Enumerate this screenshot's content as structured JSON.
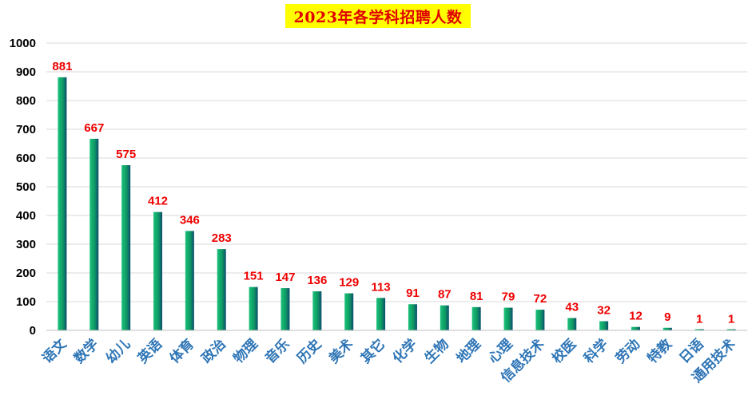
{
  "chart_data": {
    "type": "bar",
    "title": "2023年各学科招聘人数",
    "categories": [
      "语文",
      "数学",
      "幼儿",
      "英语",
      "体育",
      "政治",
      "物理",
      "音乐",
      "历史",
      "美术",
      "其它",
      "化学",
      "生物",
      "地理",
      "心理",
      "信息技术",
      "校医",
      "科学",
      "劳动",
      "特教",
      "日语",
      "通用技术"
    ],
    "values": [
      881,
      667,
      575,
      412,
      346,
      283,
      151,
      147,
      136,
      129,
      113,
      91,
      87,
      81,
      79,
      72,
      43,
      32,
      12,
      9,
      1,
      1
    ],
    "ylim": [
      0,
      1000
    ],
    "yticks": [
      0,
      100,
      200,
      300,
      400,
      500,
      600,
      700,
      800,
      900,
      1000
    ],
    "grid": true,
    "legend": "none",
    "data_labels": true
  },
  "colors": {
    "title_background": "#ffff00",
    "title_text": "#e00000",
    "data_label": "#ee0000",
    "category_label": "#2e75b6",
    "bar_top": "#1fbf6f",
    "bar_bottom": "#0a5a3f",
    "grid": "#d9d9d9"
  }
}
